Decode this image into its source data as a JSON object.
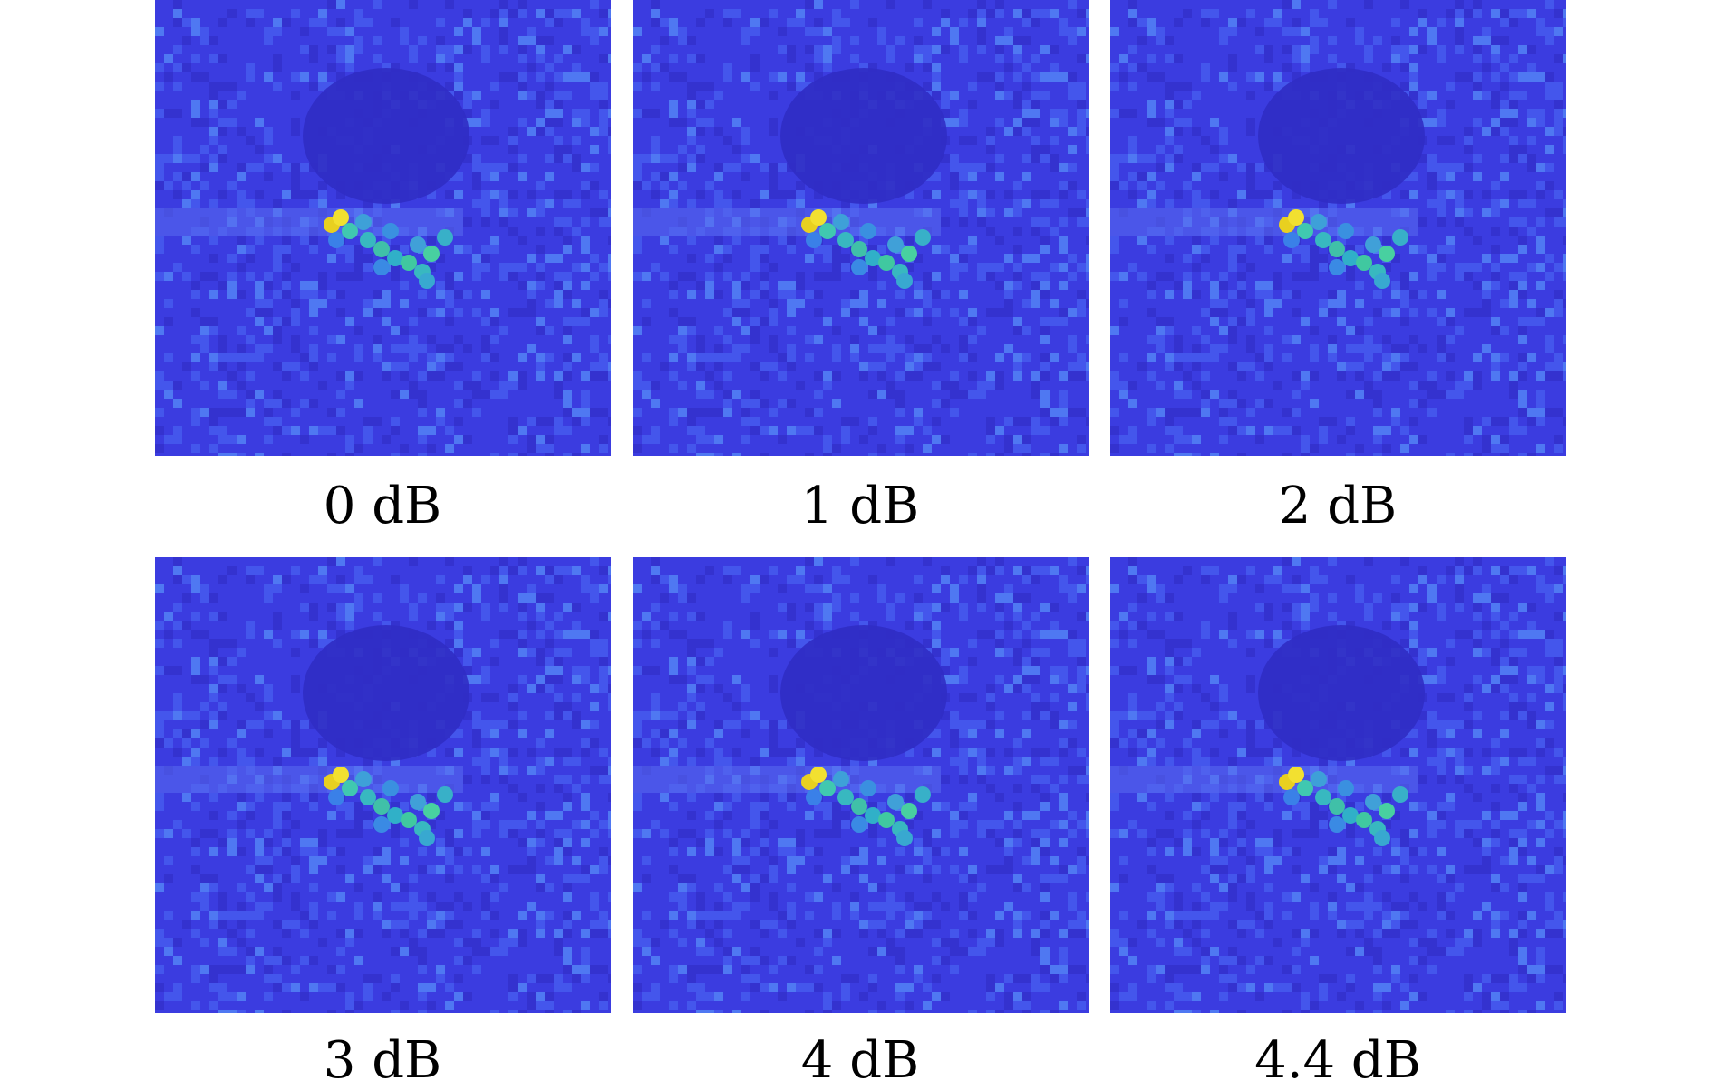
{
  "panels": [
    {
      "caption": "0 dB"
    },
    {
      "caption": "1 dB"
    },
    {
      "caption": "2 dB"
    },
    {
      "caption": "3 dB"
    },
    {
      "caption": "4 dB"
    },
    {
      "caption": "4.4 dB"
    }
  ]
}
